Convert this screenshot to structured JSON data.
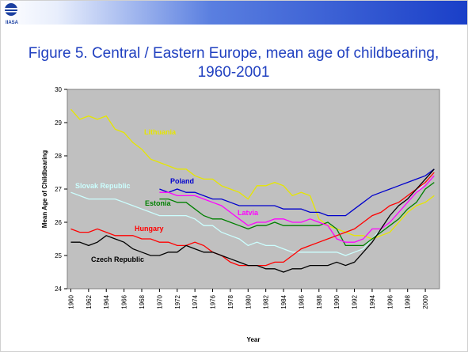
{
  "logo_text": "IIASA",
  "chart_data": {
    "type": "line",
    "title": "Figure 5. Central / Eastern Europe, mean age of childbearing, 1960-2001",
    "x_label": "Year",
    "y_label": "Mean Age of Childbearing",
    "x": [
      1960,
      1961,
      1962,
      1963,
      1964,
      1965,
      1966,
      1967,
      1968,
      1969,
      1970,
      1971,
      1972,
      1973,
      1974,
      1975,
      1976,
      1977,
      1978,
      1979,
      1980,
      1981,
      1982,
      1983,
      1984,
      1985,
      1986,
      1987,
      1988,
      1989,
      1990,
      1991,
      1992,
      1993,
      1994,
      1995,
      1996,
      1997,
      1998,
      1999,
      2000,
      2001
    ],
    "xlim": [
      1959.6,
      2001.6
    ],
    "xticks": [
      1960,
      1962,
      1964,
      1966,
      1968,
      1970,
      1972,
      1974,
      1976,
      1978,
      1980,
      1982,
      1984,
      1986,
      1988,
      1990,
      1992,
      1994,
      1996,
      1998,
      2000
    ],
    "ylim": [
      24,
      30
    ],
    "yticks": [
      24,
      25,
      26,
      27,
      28,
      29,
      30
    ],
    "series": [
      {
        "name": "Lithuania",
        "color": "#e6e600",
        "values": [
          29.4,
          29.1,
          29.2,
          29.1,
          29.2,
          28.8,
          28.7,
          28.4,
          28.2,
          27.9,
          27.8,
          27.7,
          27.6,
          27.6,
          27.4,
          27.3,
          27.3,
          27.1,
          27.0,
          26.9,
          26.7,
          27.1,
          27.1,
          27.2,
          27.1,
          26.8,
          26.9,
          26.8,
          26.1,
          25.9,
          25.8,
          25.7,
          25.6,
          25.6,
          25.5,
          25.6,
          25.7,
          26.0,
          26.3,
          26.5,
          26.6,
          26.8
        ]
      },
      {
        "name": "Poland",
        "color": "#0000cc",
        "values": [
          null,
          null,
          null,
          null,
          null,
          null,
          null,
          null,
          null,
          null,
          27.0,
          26.9,
          27.0,
          26.9,
          26.9,
          26.8,
          26.7,
          26.7,
          26.6,
          26.5,
          26.5,
          26.5,
          26.5,
          26.5,
          26.4,
          26.4,
          26.4,
          26.3,
          26.3,
          26.2,
          26.2,
          26.2,
          26.4,
          26.6,
          26.8,
          26.9,
          27.0,
          27.1,
          27.2,
          27.3,
          27.4,
          27.6
        ]
      },
      {
        "name": "Slovak Republic",
        "color": "#ccffff",
        "values": [
          26.9,
          26.8,
          26.7,
          26.7,
          26.7,
          26.7,
          26.6,
          26.5,
          26.4,
          26.3,
          26.2,
          26.2,
          26.2,
          26.2,
          26.1,
          25.9,
          25.9,
          25.7,
          25.6,
          25.5,
          25.3,
          25.4,
          25.3,
          25.3,
          25.2,
          25.1,
          25.1,
          25.1,
          25.1,
          25.1,
          25.1,
          25.0,
          25.1,
          25.2,
          25.5,
          25.8,
          26.0,
          26.3,
          26.6,
          26.9,
          27.2,
          27.5
        ]
      },
      {
        "name": "Estonia",
        "color": "#008000",
        "values": [
          null,
          null,
          null,
          null,
          null,
          null,
          null,
          null,
          null,
          null,
          26.7,
          26.7,
          26.6,
          26.6,
          26.4,
          26.2,
          26.1,
          26.1,
          26.0,
          25.9,
          25.8,
          25.9,
          25.9,
          26.0,
          25.9,
          25.9,
          25.9,
          25.9,
          25.9,
          26.0,
          25.8,
          25.3,
          25.3,
          25.3,
          25.5,
          25.7,
          25.9,
          26.1,
          26.4,
          26.6,
          27.0,
          27.2
        ]
      },
      {
        "name": "Latvia",
        "color": "#ff00ff",
        "values": [
          null,
          null,
          null,
          null,
          null,
          null,
          null,
          null,
          null,
          null,
          26.9,
          26.9,
          26.8,
          26.8,
          26.8,
          26.7,
          26.6,
          26.5,
          26.3,
          26.1,
          25.9,
          26.0,
          26.0,
          26.1,
          26.1,
          26.0,
          26.0,
          26.1,
          26.0,
          25.9,
          25.5,
          25.4,
          25.4,
          25.5,
          25.8,
          25.8,
          26.0,
          26.3,
          26.6,
          26.9,
          27.1,
          27.4
        ]
      },
      {
        "name": "Hungary",
        "color": "#ff0000",
        "values": [
          25.8,
          25.7,
          25.7,
          25.8,
          25.7,
          25.6,
          25.6,
          25.6,
          25.5,
          25.5,
          25.4,
          25.4,
          25.3,
          25.3,
          25.4,
          25.3,
          25.1,
          25.0,
          24.8,
          24.7,
          24.7,
          24.7,
          24.7,
          24.8,
          24.8,
          25.0,
          25.2,
          25.3,
          25.4,
          25.5,
          25.6,
          25.7,
          25.8,
          26.0,
          26.2,
          26.3,
          26.5,
          26.6,
          26.8,
          27.0,
          27.2,
          27.5
        ]
      },
      {
        "name": "Czech Republic",
        "color": "#000000",
        "values": [
          25.4,
          25.4,
          25.3,
          25.4,
          25.6,
          25.5,
          25.4,
          25.2,
          25.1,
          25.0,
          25.0,
          25.1,
          25.1,
          25.3,
          25.2,
          25.1,
          25.1,
          25.0,
          24.9,
          24.8,
          24.7,
          24.7,
          24.6,
          24.6,
          24.5,
          24.6,
          24.6,
          24.7,
          24.7,
          24.7,
          24.8,
          24.7,
          24.8,
          25.1,
          25.4,
          25.8,
          26.2,
          26.5,
          26.7,
          27.0,
          27.3,
          27.6
        ]
      }
    ]
  }
}
